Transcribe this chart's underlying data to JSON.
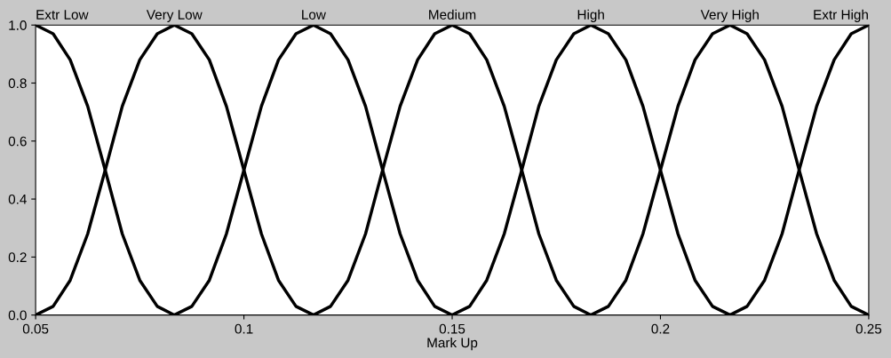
{
  "chart_data": {
    "type": "line",
    "xlabel": "Mark Up",
    "xlim": [
      0.05,
      0.25
    ],
    "xticks": [
      0.05,
      0.1,
      0.15,
      0.2,
      0.25
    ],
    "ylim": [
      0,
      1
    ],
    "yticks": [
      {
        "value": 0,
        "label": "0.0"
      },
      {
        "value": 0.2,
        "label": "0.2"
      },
      {
        "value": 0.4,
        "label": "0.4"
      },
      {
        "value": 0.6,
        "label": "0.6"
      },
      {
        "value": 0.8,
        "label": "0.8"
      },
      {
        "value": 1,
        "label": "1.0"
      }
    ],
    "grid": false,
    "legend": false,
    "marker": "none",
    "line_style": "solid",
    "series": [
      {
        "name": "Extr Low",
        "color": "#000000",
        "x": [
          0.05,
          0.0542,
          0.0583,
          0.0625,
          0.0667,
          0.0708,
          0.075,
          0.0792,
          0.0833
        ],
        "values": [
          1,
          0.97,
          0.88,
          0.72,
          0.5,
          0.28,
          0.12,
          0.03,
          0
        ]
      },
      {
        "name": "Very Low",
        "color": "#000000",
        "x": [
          0.05,
          0.0542,
          0.0583,
          0.0625,
          0.0667,
          0.0708,
          0.075,
          0.0792,
          0.0833,
          0.0875,
          0.0917,
          0.0958,
          0.1,
          0.1042,
          0.1083,
          0.1125,
          0.1167
        ],
        "values": [
          0,
          0.03,
          0.12,
          0.28,
          0.5,
          0.72,
          0.88,
          0.97,
          1,
          0.97,
          0.88,
          0.72,
          0.5,
          0.28,
          0.12,
          0.03,
          0
        ]
      },
      {
        "name": "Low",
        "color": "#000000",
        "x": [
          0.0833,
          0.0875,
          0.0917,
          0.0958,
          0.1,
          0.1042,
          0.1083,
          0.1125,
          0.1167,
          0.1208,
          0.125,
          0.1292,
          0.1333,
          0.1375,
          0.1417,
          0.1458,
          0.15
        ],
        "values": [
          0,
          0.03,
          0.12,
          0.28,
          0.5,
          0.72,
          0.88,
          0.97,
          1,
          0.97,
          0.88,
          0.72,
          0.5,
          0.28,
          0.12,
          0.03,
          0
        ]
      },
      {
        "name": "Medium",
        "color": "#000000",
        "x": [
          0.1167,
          0.1208,
          0.125,
          0.1292,
          0.1333,
          0.1375,
          0.1417,
          0.1458,
          0.15,
          0.1542,
          0.1583,
          0.1625,
          0.1667,
          0.1708,
          0.175,
          0.1792,
          0.1833
        ],
        "values": [
          0,
          0.03,
          0.12,
          0.28,
          0.5,
          0.72,
          0.88,
          0.97,
          1,
          0.97,
          0.88,
          0.72,
          0.5,
          0.28,
          0.12,
          0.03,
          0
        ]
      },
      {
        "name": "High",
        "color": "#000000",
        "x": [
          0.15,
          0.1542,
          0.1583,
          0.1625,
          0.1667,
          0.1708,
          0.175,
          0.1792,
          0.1833,
          0.1875,
          0.1917,
          0.1958,
          0.2,
          0.2042,
          0.2083,
          0.2125,
          0.2167
        ],
        "values": [
          0,
          0.03,
          0.12,
          0.28,
          0.5,
          0.72,
          0.88,
          0.97,
          1,
          0.97,
          0.88,
          0.72,
          0.5,
          0.28,
          0.12,
          0.03,
          0
        ]
      },
      {
        "name": "Very High",
        "color": "#000000",
        "x": [
          0.1833,
          0.1875,
          0.1917,
          0.1958,
          0.2,
          0.2042,
          0.2083,
          0.2125,
          0.2167,
          0.2208,
          0.225,
          0.2292,
          0.2333,
          0.2375,
          0.2417,
          0.2458,
          0.25
        ],
        "values": [
          0,
          0.03,
          0.12,
          0.28,
          0.5,
          0.72,
          0.88,
          0.97,
          1,
          0.97,
          0.88,
          0.72,
          0.5,
          0.28,
          0.12,
          0.03,
          0
        ]
      },
      {
        "name": "Extr High",
        "color": "#000000",
        "x": [
          0.2167,
          0.2208,
          0.225,
          0.2292,
          0.2333,
          0.2375,
          0.2417,
          0.2458,
          0.25
        ],
        "values": [
          0,
          0.03,
          0.12,
          0.28,
          0.5,
          0.72,
          0.88,
          0.97,
          1
        ]
      }
    ]
  }
}
